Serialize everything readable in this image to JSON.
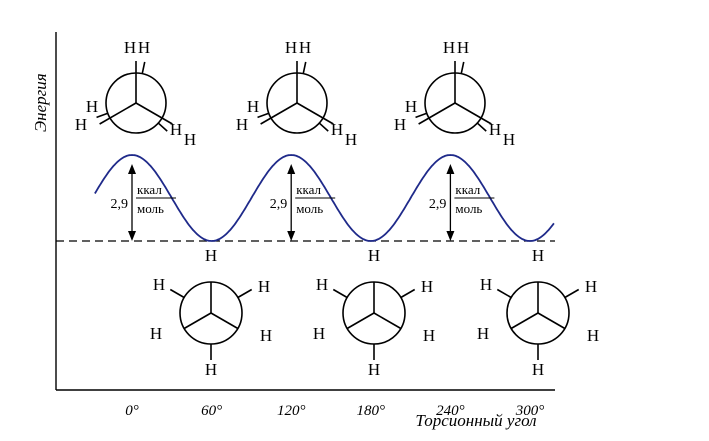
{
  "chart_data": {
    "type": "line",
    "ylabel": "Энергия",
    "xlabel": "Торсионный угол",
    "x_tick_labels": [
      "0°",
      "60°",
      "120°",
      "180°",
      "240°",
      "300°"
    ],
    "x_ticks_deg": [
      0,
      60,
      120,
      180,
      240,
      300
    ],
    "xlim_deg": [
      -28,
      318
    ],
    "series": [
      {
        "values": [
          [
            -28,
            0.0
          ],
          [
            -14,
            1.45
          ],
          [
            0,
            2.9
          ],
          [
            14,
            1.45
          ],
          [
            30,
            0.0
          ],
          [
            60,
            0.0
          ],
          [
            120,
            2.9
          ],
          [
            180,
            0.0
          ],
          [
            240,
            2.9
          ],
          [
            300,
            0.0
          ],
          [
            318,
            1.0
          ]
        ]
      }
    ],
    "barrier": {
      "value": "2,9",
      "unit_numerator": "ккал",
      "unit_denominator": "моль",
      "at_deg": [
        0,
        120,
        240
      ]
    }
  },
  "labels": {
    "H": "H"
  },
  "colors": {
    "curve": "#1f2a8a",
    "axis": "#000000"
  }
}
